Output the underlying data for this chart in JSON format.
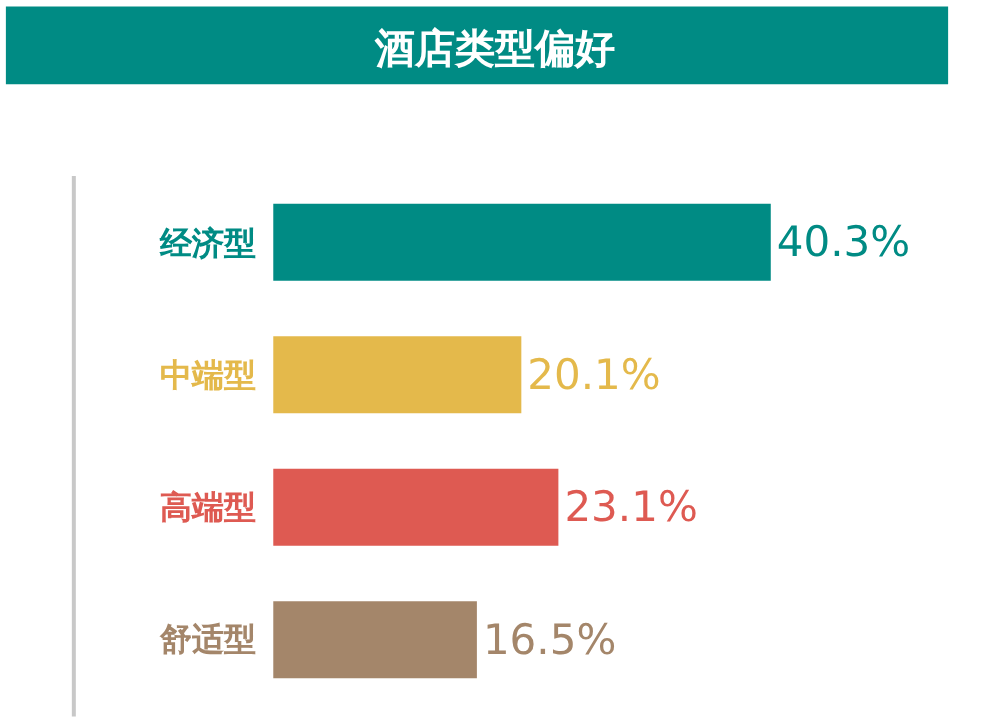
{
  "chart_data": {
    "type": "bar",
    "orientation": "horizontal",
    "title": "酒店类型偏好",
    "categories": [
      "经济型",
      "中端型",
      "高端型",
      "舒适型"
    ],
    "values": [
      40.3,
      20.1,
      23.1,
      16.5
    ],
    "colors": [
      "#008b84",
      "#e4b94b",
      "#de5a52",
      "#a4866a"
    ],
    "value_labels": [
      "40.3%",
      "20.1%",
      "23.1%",
      "16.5%"
    ]
  }
}
